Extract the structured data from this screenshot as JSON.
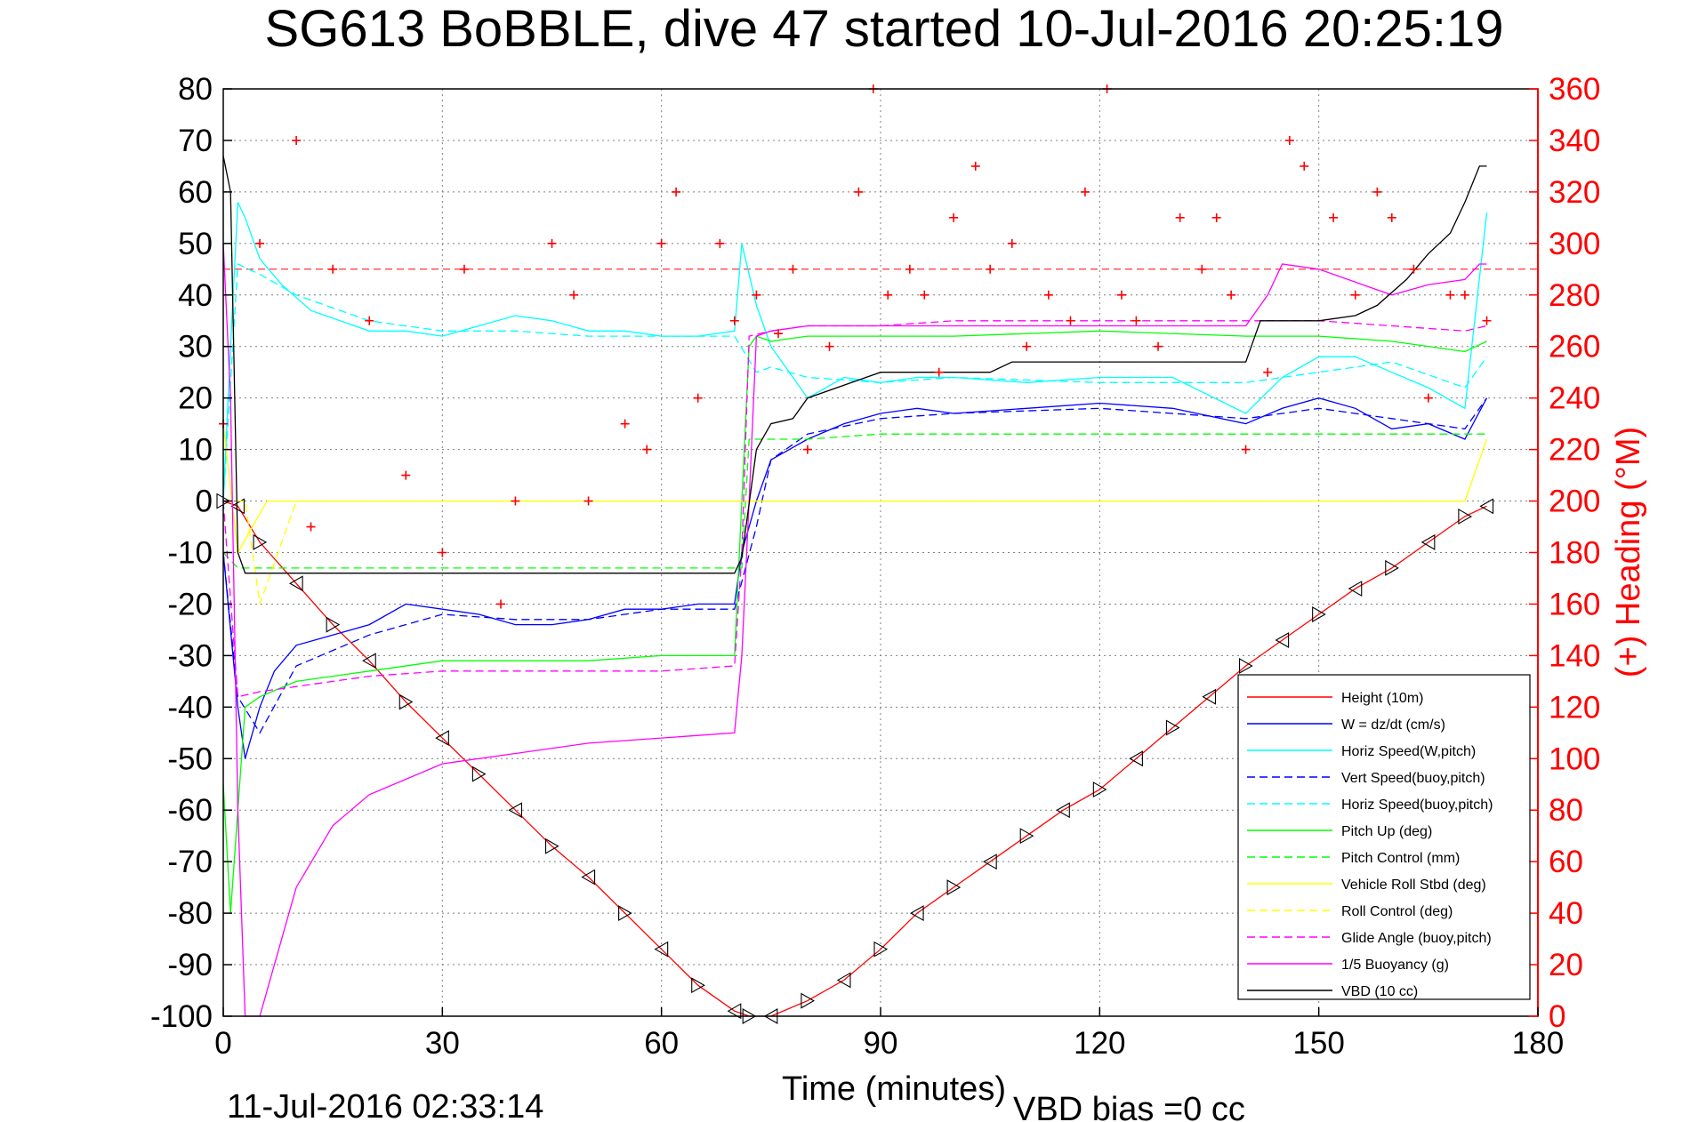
{
  "chart_data": {
    "type": "line",
    "title": "SG613 BoBBLE, dive 47 started 10-Jul-2016 20:25:19",
    "xlabel": "Time (minutes)",
    "ylabel_right": "(+) Heading (°M)",
    "footer_left": "11-Jul-2016 02:33:14",
    "footer_right": "VBD bias =0 cc",
    "xlim": [
      0,
      180
    ],
    "ylim_left": [
      -100,
      80
    ],
    "ylim_right": [
      0,
      360
    ],
    "x_ticks": [
      "0",
      "30",
      "60",
      "90",
      "120",
      "150",
      "180"
    ],
    "y_left_ticks": [
      "80",
      "70",
      "60",
      "50",
      "40",
      "30",
      "20",
      "10",
      "0",
      "-10",
      "-20",
      "-30",
      "-40",
      "-50",
      "-60",
      "-70",
      "-80",
      "-90",
      "-100"
    ],
    "y_right_ticks": [
      "360",
      "340",
      "320",
      "300",
      "280",
      "260",
      "240",
      "220",
      "200",
      "180",
      "160",
      "140",
      "120",
      "100",
      "80",
      "60",
      "40",
      "20",
      "0"
    ],
    "grid": true,
    "legend_position": "bottom-right",
    "series": [
      {
        "name": "Height (10m)",
        "color": "#ff0000",
        "style": "solid",
        "marker": "triangle",
        "x": [
          0,
          2,
          5,
          10,
          15,
          20,
          25,
          30,
          35,
          40,
          45,
          50,
          55,
          60,
          65,
          70,
          72,
          75,
          80,
          85,
          90,
          95,
          100,
          105,
          110,
          115,
          120,
          125,
          130,
          135,
          140,
          145,
          150,
          155,
          160,
          165,
          170,
          173
        ],
        "y": [
          0,
          -1,
          -8,
          -16,
          -24,
          -31,
          -39,
          -46,
          -53,
          -60,
          -67,
          -73,
          -80,
          -87,
          -94,
          -99,
          -100,
          -100,
          -97,
          -93,
          -87,
          -80,
          -75,
          -70,
          -65,
          -60,
          -56,
          -50,
          -44,
          -38,
          -32,
          -27,
          -22,
          -17,
          -13,
          -8,
          -3,
          -1
        ]
      },
      {
        "name": "W = dz/dt (cm/s)",
        "color": "#0000ff",
        "style": "solid",
        "x": [
          0,
          1,
          2,
          3,
          5,
          7,
          10,
          15,
          20,
          25,
          30,
          35,
          40,
          45,
          50,
          55,
          60,
          65,
          70,
          71,
          73,
          75,
          80,
          85,
          90,
          95,
          100,
          110,
          120,
          130,
          140,
          145,
          150,
          155,
          160,
          165,
          170,
          173
        ],
        "y": [
          -10,
          -25,
          -40,
          -50,
          -40,
          -33,
          -28,
          -26,
          -24,
          -20,
          -21,
          -22,
          -24,
          -24,
          -23,
          -21,
          -21,
          -20,
          -20,
          -10,
          0,
          8,
          12,
          15,
          17,
          18,
          17,
          18,
          19,
          18,
          15,
          18,
          20,
          18,
          14,
          15,
          12,
          20
        ]
      },
      {
        "name": "Horiz Speed(W,pitch)",
        "color": "#00ffff",
        "style": "solid",
        "x": [
          0,
          1,
          2,
          3,
          5,
          8,
          12,
          16,
          20,
          25,
          30,
          35,
          40,
          45,
          50,
          55,
          60,
          65,
          70,
          71,
          73,
          75,
          80,
          85,
          90,
          95,
          100,
          110,
          120,
          130,
          140,
          145,
          150,
          155,
          160,
          165,
          170,
          173
        ],
        "y": [
          0,
          30,
          58,
          55,
          47,
          42,
          37,
          35,
          33,
          33,
          32,
          34,
          36,
          35,
          33,
          33,
          32,
          32,
          33,
          50,
          38,
          30,
          20,
          24,
          23,
          24,
          24,
          23,
          24,
          24,
          17,
          24,
          28,
          28,
          25,
          22,
          18,
          56
        ]
      },
      {
        "name": "Vert Speed(buoy,pitch)",
        "color": "#0000ff",
        "style": "dashed",
        "x": [
          0,
          2,
          5,
          10,
          20,
          30,
          40,
          50,
          60,
          70,
          73,
          75,
          80,
          90,
          100,
          120,
          140,
          150,
          160,
          170,
          173
        ],
        "y": [
          -10,
          -38,
          -45,
          -32,
          -26,
          -22,
          -23,
          -23,
          -21,
          -21,
          -5,
          8,
          13,
          16,
          17,
          18,
          16,
          18,
          16,
          14,
          20
        ]
      },
      {
        "name": "Horiz Speed(buoy,pitch)",
        "color": "#00ffff",
        "style": "dashed",
        "x": [
          0,
          2,
          5,
          10,
          20,
          30,
          40,
          50,
          60,
          70,
          73,
          75,
          80,
          90,
          100,
          120,
          140,
          150,
          160,
          170,
          173
        ],
        "y": [
          0,
          46,
          44,
          40,
          35,
          33,
          33,
          32,
          32,
          32,
          25,
          26,
          24,
          23,
          24,
          23,
          23,
          25,
          27,
          22,
          28
        ]
      },
      {
        "name": "Pitch Up (deg)",
        "color": "#00ff00",
        "style": "solid",
        "x": [
          0,
          1,
          2,
          3,
          5,
          10,
          20,
          30,
          40,
          50,
          60,
          70,
          71,
          72,
          73,
          75,
          80,
          90,
          100,
          120,
          140,
          150,
          160,
          170,
          173
        ],
        "y": [
          -55,
          -80,
          -60,
          -40,
          -38,
          -35,
          -33,
          -31,
          -31,
          -31,
          -30,
          -30,
          0,
          30,
          32,
          31,
          32,
          32,
          32,
          33,
          32,
          32,
          31,
          29,
          31
        ]
      },
      {
        "name": "Pitch Control (mm)",
        "color": "#00ff00",
        "style": "dashed",
        "x": [
          0,
          2,
          3,
          10,
          20,
          30,
          40,
          50,
          60,
          70,
          71,
          72,
          75,
          80,
          90,
          110,
          130,
          150,
          170,
          173
        ],
        "y": [
          -10,
          -13,
          -13,
          -13,
          -13,
          -13,
          -13,
          -13,
          -13,
          -13,
          -13,
          12,
          12,
          12,
          13,
          13,
          13,
          13,
          13,
          13
        ]
      },
      {
        "name": "Vehicle Roll Stbd (deg)",
        "color": "#ffff00",
        "style": "solid",
        "x": [
          0,
          2,
          4,
          6,
          8,
          10,
          12,
          20,
          30,
          40,
          50,
          60,
          70,
          80,
          90,
          100,
          110,
          120,
          130,
          140,
          150,
          160,
          170,
          173
        ],
        "y": [
          15,
          -10,
          -5,
          0,
          0,
          0,
          0,
          0,
          0,
          0,
          0,
          0,
          0,
          0,
          0,
          0,
          0,
          0,
          0,
          0,
          0,
          0,
          0,
          12
        ]
      },
      {
        "name": "Roll Control (deg)",
        "color": "#ffff00",
        "style": "dashed",
        "x": [
          0,
          3,
          5,
          10,
          20,
          30,
          40,
          50,
          60,
          70,
          80,
          90,
          100,
          110,
          120,
          130,
          140,
          150,
          160,
          170
        ],
        "y": [
          0,
          0,
          -20,
          0,
          0,
          0,
          0,
          0,
          0,
          0,
          0,
          0,
          0,
          0,
          0,
          0,
          0,
          0,
          0,
          0
        ]
      },
      {
        "name": "Glide Angle (buoy,pitch)",
        "color": "#ff00ff",
        "style": "dashed",
        "x": [
          0,
          2,
          5,
          10,
          20,
          30,
          40,
          50,
          60,
          70,
          71,
          72,
          75,
          80,
          90,
          100,
          120,
          140,
          150,
          160,
          170,
          173
        ],
        "y": [
          0,
          -38,
          -37,
          -36,
          -34,
          -33,
          -33,
          -33,
          -33,
          -32,
          -10,
          32,
          33,
          34,
          34,
          35,
          35,
          35,
          35,
          34,
          33,
          34
        ]
      },
      {
        "name": "1/5 Buoyancy (g)",
        "color": "#ff00ff",
        "style": "solid",
        "x": [
          0,
          1,
          2,
          3,
          5,
          10,
          15,
          20,
          30,
          40,
          50,
          60,
          70,
          71,
          72,
          73,
          75,
          80,
          90,
          100,
          110,
          120,
          130,
          140,
          143,
          145,
          150,
          160,
          165,
          170,
          172,
          173
        ],
        "y": [
          50,
          20,
          -60,
          -100,
          -100,
          -75,
          -63,
          -57,
          -51,
          -49,
          -47,
          -46,
          -45,
          -30,
          0,
          32,
          33,
          34,
          34,
          34,
          34,
          34,
          34,
          34,
          40,
          46,
          45,
          40,
          42,
          43,
          46,
          46
        ]
      },
      {
        "name": "VBD (10 cc)",
        "color": "#000000",
        "style": "solid",
        "x": [
          0,
          1,
          2,
          3,
          30,
          70,
          71,
          73,
          75,
          78,
          80,
          88,
          90,
          105,
          108,
          140,
          142,
          150,
          155,
          158,
          162,
          165,
          168,
          170,
          172,
          173
        ],
        "y": [
          67,
          60,
          -10,
          -14,
          -14,
          -14,
          -11,
          10,
          15,
          16,
          20,
          24,
          25,
          25,
          27,
          27,
          35,
          35,
          36,
          38,
          43,
          48,
          52,
          58,
          65,
          65
        ]
      },
      {
        "name": "Heading (°M)",
        "color": "#ff0000",
        "style": "plus",
        "axis": "right",
        "x": [
          0,
          5,
          10,
          12,
          15,
          20,
          25,
          30,
          33,
          38,
          40,
          45,
          48,
          50,
          55,
          58,
          60,
          62,
          65,
          68,
          70,
          73,
          76,
          78,
          80,
          83,
          87,
          89,
          91,
          94,
          96,
          98,
          100,
          103,
          105,
          108,
          110,
          113,
          116,
          118,
          121,
          123,
          125,
          128,
          131,
          134,
          136,
          138,
          140,
          143,
          146,
          148,
          152,
          155,
          158,
          160,
          163,
          165,
          168,
          170,
          173
        ],
        "y": [
          230,
          300,
          340,
          190,
          290,
          270,
          210,
          180,
          290,
          160,
          200,
          300,
          280,
          200,
          230,
          220,
          300,
          320,
          240,
          300,
          270,
          280,
          265,
          290,
          220,
          260,
          320,
          360,
          280,
          290,
          280,
          250,
          310,
          330,
          290,
          300,
          260,
          280,
          270,
          320,
          360,
          280,
          270,
          260,
          310,
          290,
          310,
          280,
          220,
          250,
          340,
          330,
          310,
          280,
          320,
          310,
          290,
          240,
          280,
          280,
          270
        ]
      }
    ]
  }
}
